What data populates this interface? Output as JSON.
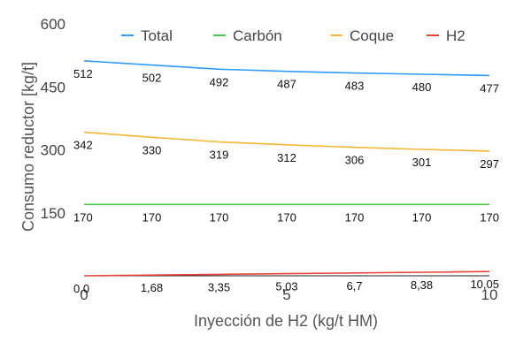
{
  "chart_data": {
    "type": "line",
    "title": "",
    "xlabel": "Inyección de H2 (kg/t HM)",
    "ylabel": "Consumo reductor [kg/t]",
    "x": [
      0,
      1.67,
      3.33,
      5,
      6.67,
      8.33,
      10
    ],
    "xticks": [
      0,
      5,
      10
    ],
    "yticks": [
      150,
      300,
      450,
      600
    ],
    "xlim": [
      0,
      10
    ],
    "ylim": [
      0,
      600
    ],
    "grid": false,
    "legend": "top",
    "series": [
      {
        "name": "Total",
        "color": "#2f9bff",
        "values": [
          512,
          502,
          492,
          487,
          483,
          480,
          477
        ],
        "labels": [
          "512",
          "502",
          "492",
          "487",
          "483",
          "480",
          "477"
        ]
      },
      {
        "name": "Carbón",
        "color": "#47c83e",
        "values": [
          170,
          170,
          170,
          170,
          170,
          170,
          170
        ],
        "labels": [
          "170",
          "170",
          "170",
          "170",
          "170",
          "170",
          "170"
        ]
      },
      {
        "name": "Coque",
        "color": "#f5b731",
        "values": [
          342,
          330,
          319,
          312,
          306,
          301,
          297
        ],
        "labels": [
          "342",
          "330",
          "319",
          "312",
          "306",
          "301",
          "297"
        ]
      },
      {
        "name": "H2",
        "color": "#e8423a",
        "values": [
          0,
          1.68,
          3.35,
          5.03,
          6.7,
          8.38,
          10.05
        ],
        "labels": [
          "0,0",
          "1,68",
          "3,35",
          "5,03",
          "6,7",
          "8,38",
          "10,05"
        ]
      }
    ]
  }
}
